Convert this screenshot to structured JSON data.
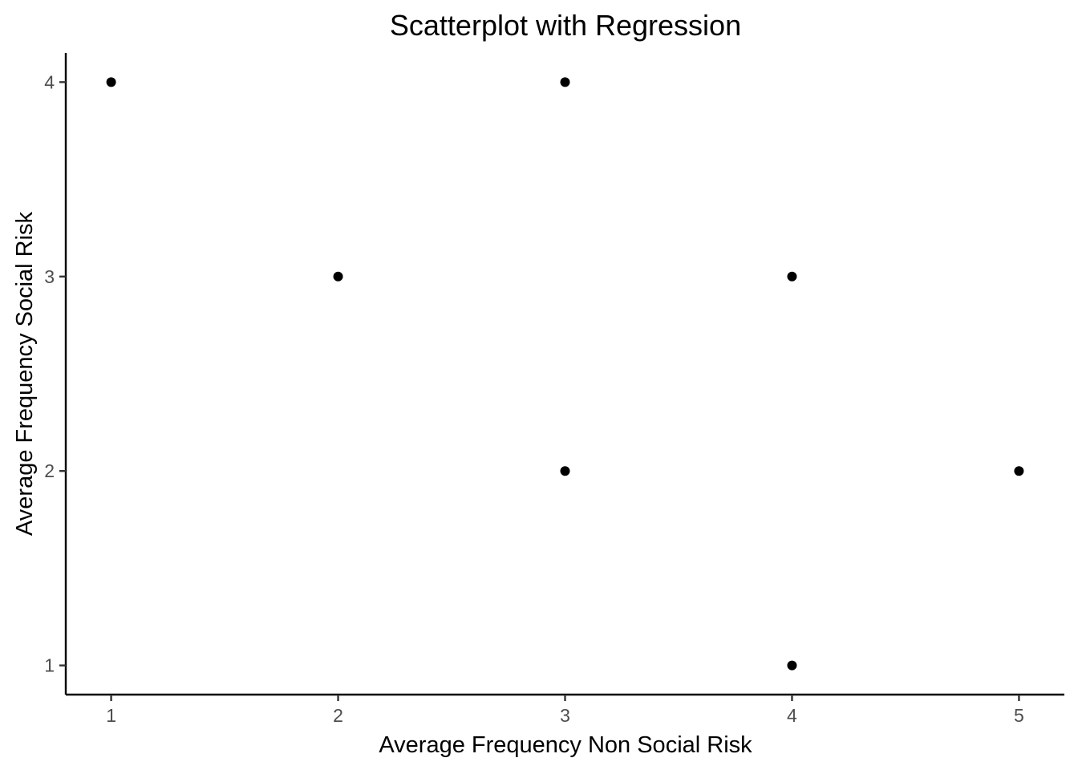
{
  "chart_data": {
    "type": "scatter",
    "title": "Scatterplot with Regression",
    "xlabel": "Average Frequency Non Social Risk",
    "ylabel": "Average Frequency Social Risk",
    "xlim": [
      0.8,
      5.2
    ],
    "ylim": [
      0.85,
      4.15
    ],
    "x_ticks": [
      1,
      2,
      3,
      4,
      5
    ],
    "y_ticks": [
      1,
      2,
      3,
      4
    ],
    "grid": false,
    "legend": "none",
    "colors": {
      "points": "#000000",
      "axis": "#000000",
      "tick_labels": "#4d4d4d"
    },
    "series": [
      {
        "points": [
          {
            "x": 1,
            "y": 4
          },
          {
            "x": 2,
            "y": 3
          },
          {
            "x": 3,
            "y": 4
          },
          {
            "x": 3,
            "y": 2
          },
          {
            "x": 4,
            "y": 3
          },
          {
            "x": 4,
            "y": 1
          },
          {
            "x": 5,
            "y": 2
          }
        ]
      }
    ]
  }
}
